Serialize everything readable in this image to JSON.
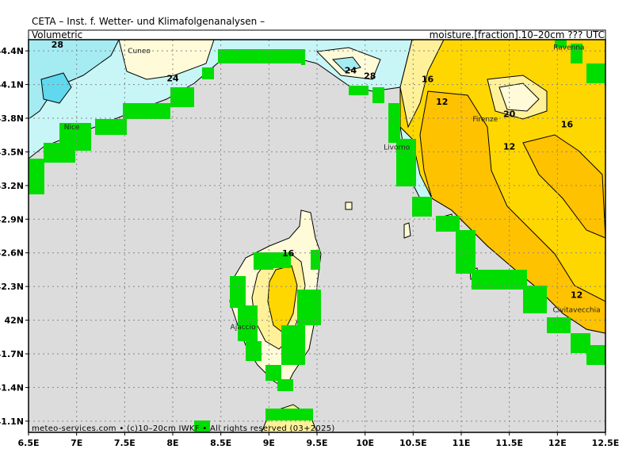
{
  "header": {
    "title": "CETA – Inst. f. Wetter- und Klimafolgenanalysen –",
    "left_label": "Volumetric",
    "right_label": "moisture.[fraction].10–20cm  ??? UTC"
  },
  "axes": {
    "lat_ticks": [
      "44.4N",
      "44.1N",
      "43.8N",
      "43.5N",
      "43.2N",
      "42.9N",
      "42.6N",
      "42.3N",
      "42N",
      "41.7N",
      "41.4N",
      "41.1N"
    ],
    "lon_ticks": [
      "6.5E",
      "7E",
      "7.5E",
      "8E",
      "8.5E",
      "9E",
      "9.5E",
      "10E",
      "10.5E",
      "11E",
      "11.5E",
      "12E",
      "12.5E"
    ]
  },
  "places": [
    {
      "name": "Cuneo",
      "lon": 7.65,
      "lat": 44.38
    },
    {
      "name": "Ravenna",
      "lon": 12.12,
      "lat": 44.41
    },
    {
      "name": "Nice",
      "lon": 6.95,
      "lat": 43.7
    },
    {
      "name": "Firenze",
      "lon": 11.25,
      "lat": 43.77
    },
    {
      "name": "Livorno",
      "lon": 10.33,
      "lat": 43.52
    },
    {
      "name": "Ajaccio",
      "lon": 8.73,
      "lat": 41.92
    },
    {
      "name": "Civitavecchia",
      "lon": 12.2,
      "lat": 42.07
    }
  ],
  "contour_labels": [
    {
      "text": "28",
      "lon": 6.8,
      "lat": 44.43
    },
    {
      "text": "24",
      "lon": 8.0,
      "lat": 44.13
    },
    {
      "text": "24",
      "lon": 9.85,
      "lat": 44.2
    },
    {
      "text": "28",
      "lon": 10.05,
      "lat": 44.15
    },
    {
      "text": "16",
      "lon": 10.65,
      "lat": 44.12
    },
    {
      "text": "12",
      "lon": 10.8,
      "lat": 43.92
    },
    {
      "text": "20",
      "lon": 11.5,
      "lat": 43.81
    },
    {
      "text": "16",
      "lon": 12.1,
      "lat": 43.72
    },
    {
      "text": "12",
      "lon": 11.5,
      "lat": 43.52
    },
    {
      "text": "16",
      "lon": 9.2,
      "lat": 42.57
    },
    {
      "text": "12",
      "lon": 12.2,
      "lat": 42.2
    }
  ],
  "legend_colors": {
    "sea": "#dcdcdc",
    "mask_land": "#00dd00",
    "class_8_12": "#ffc200",
    "class_12_16": "#ffd700",
    "class_16_20": "#fff19a",
    "class_20_24": "#fffbd8",
    "class_24_28": "#c8f6f6",
    "class_28_32": "#a4ecf2",
    "class_32_plus": "#60d8ee"
  },
  "credit": "meteo-services.com • (c)10–20cm IWKF • All rights reserved (03+2025)"
}
